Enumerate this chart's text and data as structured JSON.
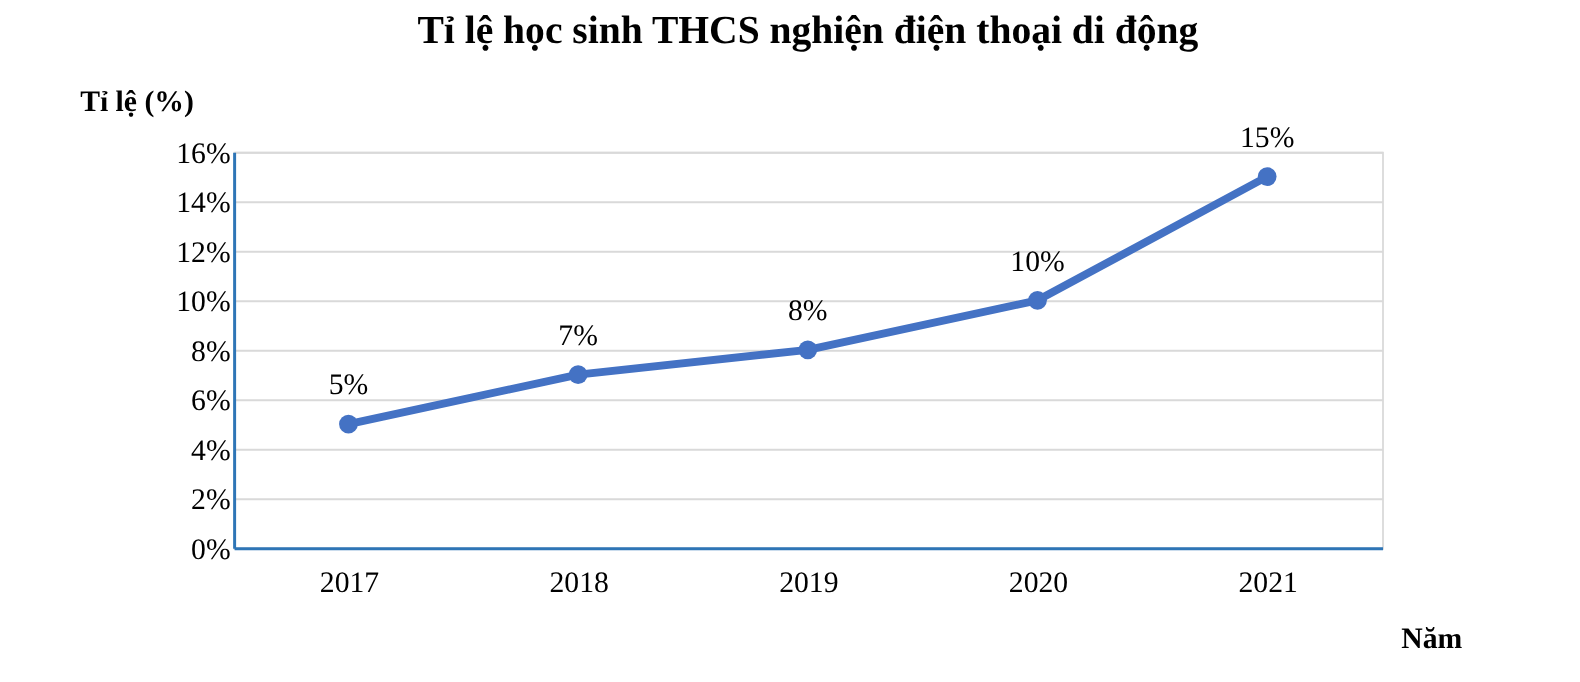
{
  "chart_data": {
    "type": "line",
    "title": "Tỉ lệ học sinh THCS nghiện điện thoại di động",
    "xlabel": "Năm",
    "ylabel": "Tỉ lệ (%)",
    "categories": [
      "2017",
      "2018",
      "2019",
      "2020",
      "2021"
    ],
    "series": [
      {
        "color": "#4472c4",
        "values": [
          5,
          7,
          8,
          10,
          15
        ],
        "value_labels": [
          "5%",
          "7%",
          "8%",
          "10%",
          "15%"
        ]
      }
    ],
    "ylim": [
      0,
      16
    ],
    "yticks": [
      {
        "value": 0,
        "label": "0%"
      },
      {
        "value": 2,
        "label": "2%"
      },
      {
        "value": 4,
        "label": "4%"
      },
      {
        "value": 6,
        "label": "6%"
      },
      {
        "value": 8,
        "label": "8%"
      },
      {
        "value": 10,
        "label": "10%"
      },
      {
        "value": 12,
        "label": "12%"
      },
      {
        "value": 14,
        "label": "14%"
      },
      {
        "value": 16,
        "label": "16%"
      }
    ],
    "grid": "y",
    "marker": "circle",
    "line_style": "solid"
  }
}
